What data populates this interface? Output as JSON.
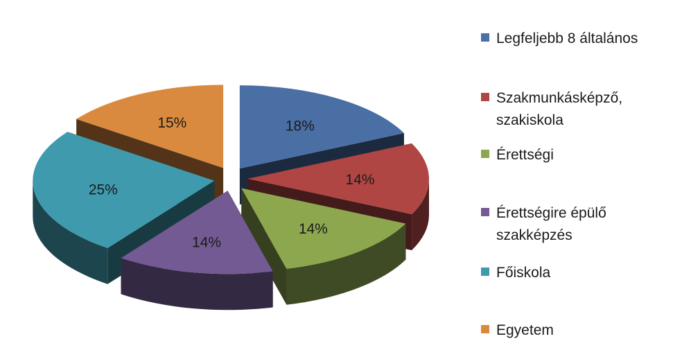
{
  "chart_data": {
    "type": "pie",
    "variant": "3d-exploded",
    "categories": [
      "Legfeljebb 8 általános",
      "Szakmunkásképző, szakiskola",
      "Érettségi",
      "Érettségire épülő szakképzés",
      "Főiskola",
      "Egyetem"
    ],
    "values": [
      18,
      14,
      14,
      14,
      25,
      15
    ],
    "data_labels": [
      "18%",
      "14%",
      "14%",
      "14%",
      "25%",
      "15%"
    ],
    "colors": [
      "#4A6FA5",
      "#B04644",
      "#8DA74F",
      "#735A93",
      "#3F9AAE",
      "#DA8A3E"
    ],
    "legend": {
      "placement": "right",
      "items": [
        {
          "label": "Legfeljebb 8 általános",
          "color": "#4A6FA5"
        },
        {
          "label": "Szakmunkásképző, szakiskola",
          "color": "#B04644"
        },
        {
          "label": "Érettségi",
          "color": "#8DA74F"
        },
        {
          "label": "Érettségire épülő szakképzés",
          "color": "#735A93"
        },
        {
          "label": "Főiskola",
          "color": "#3F9AAE"
        },
        {
          "label": "Egyetem",
          "color": "#DA8A3E"
        }
      ]
    }
  }
}
